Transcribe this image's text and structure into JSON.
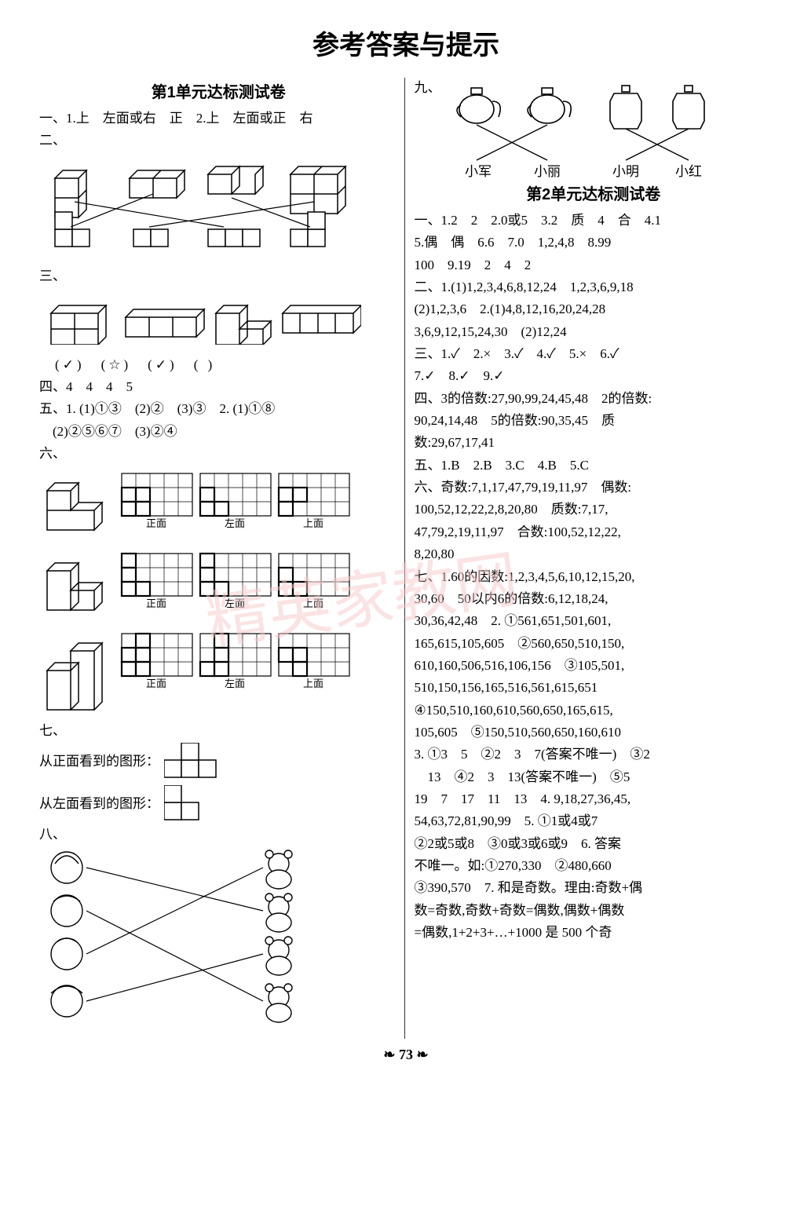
{
  "page": {
    "title": "参考答案与提示",
    "footer": "73",
    "watermark": "精英家教网",
    "text_color": "#000000",
    "bg_color": "#ffffff",
    "line_color": "#333333"
  },
  "left": {
    "unit_title": "第1单元达标测试卷",
    "q1": "一、1.上　左面或右　正　2.上　左面或正　右",
    "q2_label": "二、",
    "q3_label": "三、",
    "q3_marks": "(✓)　(☆)　(✓)　( )",
    "q4": "四、4　4　4　5",
    "q5a": "五、1. (1)①③　(2)②　(3)③　2. (1)①⑧",
    "q5b": "　(2)②⑤⑥⑦　(3)②④",
    "q6_label": "六、",
    "q7_label": "七、",
    "q7a": "从正面看到的图形：",
    "q7b": "从左面看到的图形：",
    "q8_label": "八、"
  },
  "right": {
    "q9_label": "九、",
    "q9_names": [
      "小军",
      "小丽",
      "小明",
      "小红"
    ],
    "unit_title": "第2单元达标测试卷",
    "u2_q1a": "一、1.2　2　2.0或5　3.2　质　4　合　4.1",
    "u2_q1b": "5.偶　偶　6.6　7.0　1,2,4,8　8.99",
    "u2_q1c": "100　9.19　2　4　2",
    "u2_q2a": "二、1.(1)1,2,3,4,6,8,12,24　1,2,3,6,9,18",
    "u2_q2b": "(2)1,2,3,6　2.(1)4,8,12,16,20,24,28",
    "u2_q2c": "3,6,9,12,15,24,30　(2)12,24",
    "u2_q3a": "三、1.✓　2.×　3.✓　4.✓　5.×　6.✓",
    "u2_q3b": "7.✓　8.✓　9.✓",
    "u2_q4a": "四、3的倍数:27,90,99,24,45,48　2的倍数:",
    "u2_q4b": "90,24,14,48　5的倍数:90,35,45　质",
    "u2_q4c": "数:29,67,17,41",
    "u2_q5": "五、1.B　2.B　3.C　4.B　5.C",
    "u2_q6a": "六、奇数:7,1,17,47,79,19,11,97　偶数:",
    "u2_q6b": "100,52,12,22,2,8,20,80　质数:7,17,",
    "u2_q6c": "47,79,2,19,11,97　合数:100,52,12,22,",
    "u2_q6d": "8,20,80",
    "u2_q7a": "七、1.60的因数:1,2,3,4,5,6,10,12,15,20,",
    "u2_q7b": "30,60　50以内6的倍数:6,12,18,24,",
    "u2_q7c": "30,36,42,48　2. ①561,651,501,601,",
    "u2_q7d": "165,615,105,605　②560,650,510,150,",
    "u2_q7e": "610,160,506,516,106,156　③105,501,",
    "u2_q7f": "510,150,156,165,516,561,615,651",
    "u2_q7g": "④150,510,160,610,560,650,165,615,",
    "u2_q7h": "105,605　⑤150,510,560,650,160,610",
    "u2_q7i": "3. ①3　5　②2　3　7(答案不唯一)　③2",
    "u2_q7j": "　13　④2　3　13(答案不唯一)　⑤5",
    "u2_q7k": "19　7　17　11　13　4. 9,18,27,36,45,",
    "u2_q7l": "54,63,72,81,90,99　5. ①1或4或7",
    "u2_q7m": "②2或5或8　③0或3或6或9　6. 答案",
    "u2_q7n": "不唯一。如:①270,330　②480,660",
    "u2_q7o": "③390,570　7. 和是奇数。理由:奇数+偶",
    "u2_q7p": "数=奇数,奇数+奇数=偶数,偶数+偶数",
    "u2_q7q": "=偶数,1+2+3+…+1000 是 500 个奇"
  },
  "diagram": {
    "cube_stroke": "#000000",
    "cube_fill": "#ffffff",
    "grid_rows": 3,
    "grid_cols_per": 5,
    "grid_groups": 3,
    "grid_labels": [
      "正面",
      "左面",
      "上面"
    ],
    "q2_top_positions": [
      30,
      125,
      230,
      330
    ],
    "q2_bottom_positions": [
      30,
      130,
      230,
      330
    ],
    "q2_connections": [
      [
        0,
        2
      ],
      [
        1,
        0
      ],
      [
        2,
        3
      ],
      [
        3,
        1
      ]
    ],
    "q8_connections": [
      [
        0,
        1
      ],
      [
        1,
        3
      ],
      [
        2,
        0
      ],
      [
        3,
        2
      ]
    ],
    "q9_connections": [
      [
        0,
        1
      ],
      [
        1,
        0
      ],
      [
        2,
        3
      ],
      [
        3,
        2
      ]
    ]
  }
}
